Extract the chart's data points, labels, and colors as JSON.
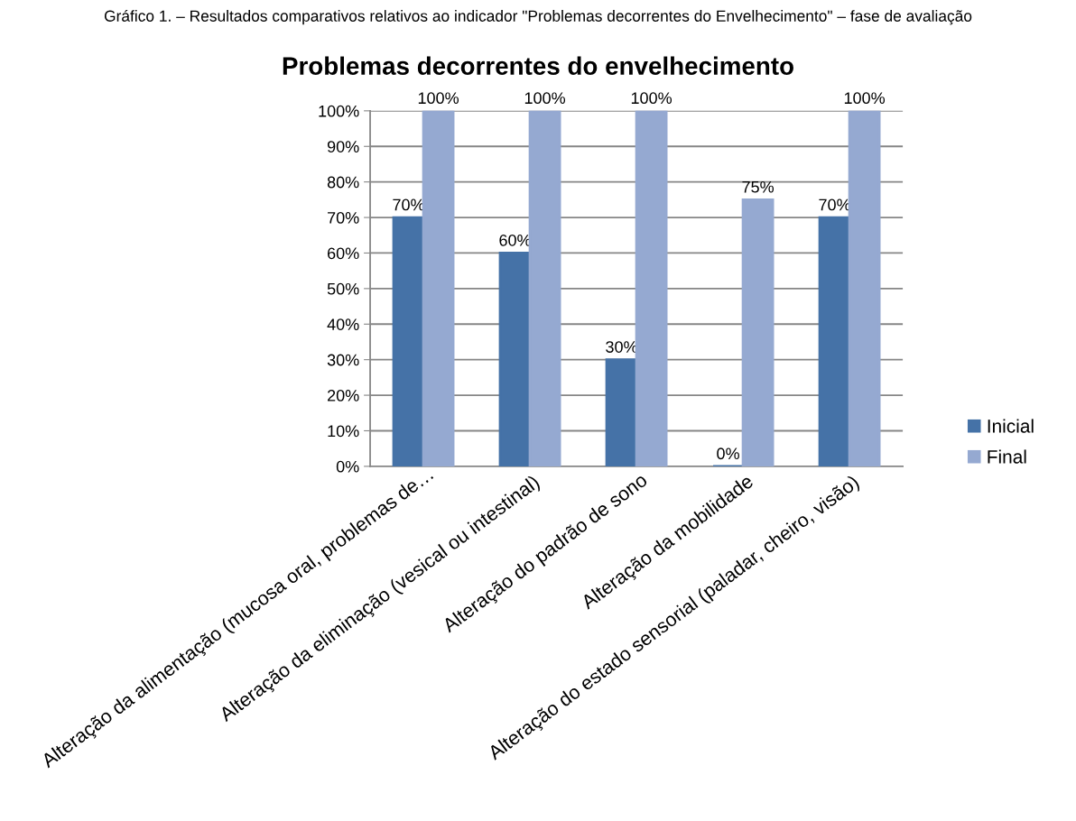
{
  "chart_data": {
    "type": "bar",
    "title": "Problemas decorrentes do envelhecimento",
    "annotations": [
      "Gráfico 1. – Resultados comparativos relativos ao indicador \"Problemas decorrentes do Envelhecimento\" – fase de avaliação"
    ],
    "categories": [
      "Alteração da alimentação (mucosa oral, problemas de…",
      "Alteração da eliminação (vesical ou intestinal)",
      "Alteração do padrão de sono",
      "Alteração da mobilidade",
      "Alteração do estado sensorial (paladar, cheiro, visão)"
    ],
    "series": [
      {
        "name": "Inicial",
        "color": "#4572a7",
        "values": [
          70,
          60,
          30,
          0,
          70
        ],
        "value_labels": [
          "70%",
          "60%",
          "30%",
          "0%",
          "70%"
        ]
      },
      {
        "name": "Final",
        "color": "#95a9d1",
        "values": [
          100,
          100,
          100,
          75,
          100
        ],
        "value_labels": [
          "100%",
          "100%",
          "100%",
          "75%",
          "100%"
        ]
      }
    ],
    "ylim": [
      0,
      100
    ],
    "yticks": [
      {
        "value": 0,
        "label": "0%"
      },
      {
        "value": 10,
        "label": "10%"
      },
      {
        "value": 20,
        "label": "20%"
      },
      {
        "value": 30,
        "label": "30%"
      },
      {
        "value": 40,
        "label": "40%"
      },
      {
        "value": 50,
        "label": "50%"
      },
      {
        "value": 60,
        "label": "60%"
      },
      {
        "value": 70,
        "label": "70%"
      },
      {
        "value": 80,
        "label": "80%"
      },
      {
        "value": 90,
        "label": "90%"
      },
      {
        "value": 100,
        "label": "100%"
      }
    ],
    "grid": "y",
    "legend": "right"
  }
}
